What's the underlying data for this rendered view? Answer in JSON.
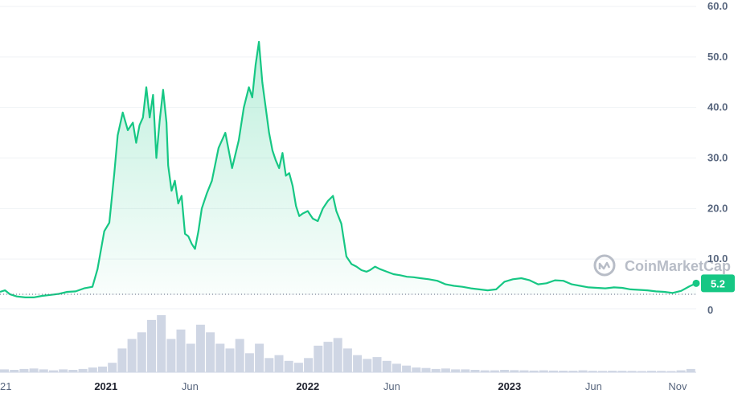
{
  "colors": {
    "line": "#16c784",
    "fill_top": "#16c784",
    "volume": "#cfd6e4",
    "grid": "#eff2f5",
    "text": "#58667e",
    "watermark": "#b8bdc7"
  },
  "watermark": {
    "text": "CoinMarketCap",
    "icon": "coinmarketcap-logo-icon"
  },
  "current_price_label": "5.2",
  "volume_axis_label": "0",
  "chart_data": {
    "type": "area",
    "title": "",
    "xlabel": "",
    "ylabel": "",
    "ylim": [
      0,
      60
    ],
    "y_ticks": [
      "60.0",
      "50.0",
      "40.0",
      "30.0",
      "20.0",
      "10.0"
    ],
    "x_ticks": [
      {
        "label": "21",
        "t": 0,
        "bold": false
      },
      {
        "label": "2021",
        "t": 6.3,
        "bold": true
      },
      {
        "label": "Jun",
        "t": 11.3,
        "bold": false
      },
      {
        "label": "2022",
        "t": 18.3,
        "bold": true
      },
      {
        "label": "Jun",
        "t": 23.3,
        "bold": false
      },
      {
        "label": "2023",
        "t": 30.3,
        "bold": true
      },
      {
        "label": "Jun",
        "t": 35.3,
        "bold": false
      },
      {
        "label": "Nov",
        "t": 40.3,
        "bold": false
      }
    ],
    "series": [
      {
        "x": [
          0,
          0.3,
          0.6,
          1,
          1.5,
          2,
          2.5,
          3,
          3.5,
          4,
          4.5,
          5,
          5.5,
          5.8,
          6.2,
          6.5,
          6.8,
          7.0,
          7.3,
          7.6,
          7.9,
          8.1,
          8.3,
          8.5,
          8.7,
          8.9,
          9.1,
          9.3,
          9.5,
          9.7,
          9.9,
          10.0,
          10.2,
          10.4,
          10.6,
          10.8,
          11.0,
          11.2,
          11.4,
          11.6,
          11.8,
          12.0,
          12.3,
          12.6,
          13.0,
          13.4,
          13.8,
          14.2,
          14.5,
          14.8,
          15.0,
          15.2,
          15.4,
          15.6,
          15.8,
          16.0,
          16.2,
          16.4,
          16.6,
          16.8,
          17.0,
          17.2,
          17.4,
          17.6,
          17.8,
          18.0,
          18.3,
          18.6,
          18.9,
          19.2,
          19.5,
          19.8,
          20.0,
          20.3,
          20.6,
          20.9,
          21.2,
          21.5,
          21.8,
          22.0,
          22.3,
          22.6,
          23.0,
          23.4,
          23.8,
          24.2,
          24.6,
          25,
          25.5,
          26,
          26.5,
          27,
          27.5,
          28,
          28.5,
          29,
          29.5,
          30,
          30.5,
          31,
          31.5,
          32,
          32.5,
          33,
          33.5,
          34,
          34.5,
          35,
          35.5,
          36,
          36.5,
          37,
          37.5,
          38,
          38.5,
          39,
          39.5,
          40,
          40.5,
          41,
          41.4
        ],
        "values": [
          3.5,
          3.8,
          3.0,
          2.6,
          2.4,
          2.4,
          2.7,
          2.9,
          3.1,
          3.5,
          3.6,
          4.2,
          4.5,
          8.0,
          15.5,
          17.2,
          27.0,
          34.5,
          39.0,
          35.5,
          37.0,
          33.0,
          36.5,
          38.0,
          44.0,
          38.0,
          42.5,
          30.0,
          37.5,
          43.5,
          37.0,
          28.5,
          23.5,
          25.5,
          21.0,
          22.5,
          15.0,
          14.5,
          13.0,
          12.0,
          15.5,
          20.0,
          23.0,
          25.5,
          32.0,
          35.0,
          28.0,
          33.5,
          40.0,
          44.0,
          42.0,
          48.5,
          53.0,
          45.0,
          40.0,
          35.0,
          31.5,
          29.5,
          28.0,
          31.0,
          26.5,
          27.0,
          24.5,
          20.5,
          18.5,
          19.0,
          19.5,
          18.0,
          17.5,
          20.0,
          21.5,
          22.5,
          19.5,
          17.0,
          10.5,
          9.0,
          8.5,
          7.8,
          7.5,
          7.8,
          8.5,
          8.0,
          7.5,
          7.0,
          6.8,
          6.5,
          6.4,
          6.2,
          6.0,
          5.7,
          5.0,
          4.7,
          4.5,
          4.2,
          4.0,
          3.8,
          4.0,
          5.5,
          6.0,
          6.2,
          5.8,
          5.0,
          5.2,
          5.8,
          5.7,
          5.0,
          4.7,
          4.4,
          4.3,
          4.2,
          4.4,
          4.3,
          4.0,
          3.9,
          3.8,
          3.6,
          3.5,
          3.3,
          3.7,
          4.6,
          5.2
        ]
      }
    ],
    "volume": [
      0.3,
      0.25,
      0.35,
      0.4,
      0.3,
      0.2,
      0.3,
      0.25,
      0.35,
      0.5,
      0.6,
      1.0,
      2.5,
      3.5,
      4.2,
      5.5,
      6.0,
      3.5,
      4.5,
      3.0,
      5.0,
      4.2,
      3.0,
      2.5,
      3.5,
      2.0,
      3.0,
      1.5,
      1.8,
      1.2,
      1.0,
      1.5,
      2.8,
      3.2,
      3.6,
      2.5,
      1.8,
      1.4,
      1.6,
      1.2,
      0.9,
      0.7,
      0.5,
      0.45,
      0.35,
      0.4,
      0.3,
      0.3,
      0.25,
      0.2,
      0.2,
      0.25,
      0.22,
      0.2,
      0.18,
      0.2,
      0.18,
      0.17,
      0.16,
      0.2,
      0.15,
      0.14,
      0.16,
      0.15,
      0.14,
      0.13,
      0.15,
      0.14,
      0.13,
      0.2,
      0.35
    ],
    "last_value": 5.2,
    "grid": true,
    "legend": "none"
  }
}
